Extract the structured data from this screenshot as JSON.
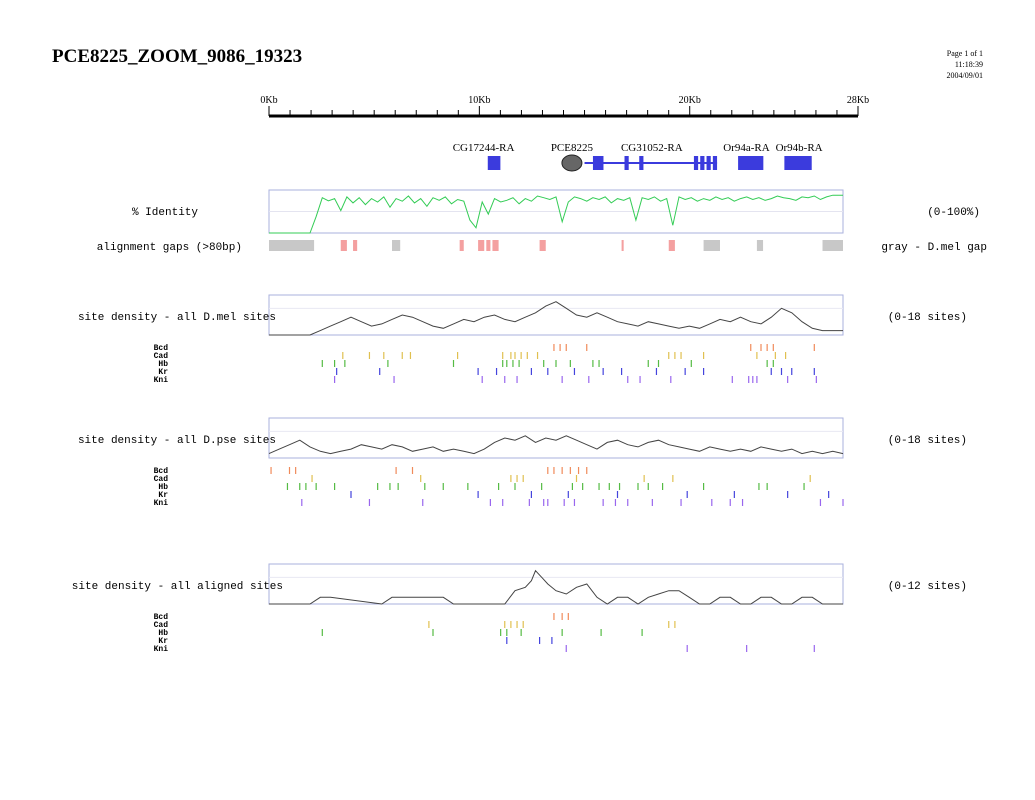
{
  "page": {
    "title": "PCE8225_ZOOM_9086_19323",
    "meta": [
      "Page 1 of 1",
      "11:18:39",
      "2004/09/01"
    ]
  },
  "chart_data": {
    "type": "genome-browser",
    "ruler": {
      "xlim_kb": [
        0,
        28
      ],
      "tick_labels": [
        {
          "kb": 0,
          "label": "0Kb"
        },
        {
          "kb": 10,
          "label": "10Kb"
        },
        {
          "kb": 20,
          "label": "20Kb"
        },
        {
          "kb": 28,
          "label": "28Kb"
        }
      ],
      "minor_step_kb": 1
    },
    "genes": [
      {
        "name": "CG17244-RA",
        "label_kb": 10.2,
        "exons": [
          [
            10.4,
            11.0
          ]
        ],
        "introns": []
      },
      {
        "name": "PCE8225",
        "label_kb": 14.4,
        "element": {
          "center_kb": 14.4,
          "type": "oval"
        }
      },
      {
        "name": "CG31052-RA",
        "label_kb": 18.2,
        "exons": [
          [
            15.4,
            15.9
          ],
          [
            16.9,
            17.1
          ],
          [
            17.6,
            17.8
          ],
          [
            20.2,
            20.4
          ],
          [
            20.5,
            20.7
          ],
          [
            20.8,
            21.0
          ],
          [
            21.1,
            21.3
          ]
        ],
        "introns": [
          [
            15.0,
            21.3
          ]
        ]
      },
      {
        "name": "Or94a-RA",
        "label_kb": 22.7,
        "exons": [
          [
            22.3,
            23.5
          ]
        ],
        "introns": []
      },
      {
        "name": "Or94b-RA",
        "label_kb": 25.2,
        "exons": [
          [
            24.5,
            25.8
          ]
        ],
        "introns": []
      }
    ],
    "identity": {
      "label": "% Identity",
      "range_label": "(0-100%)",
      "x_kb": [
        0,
        1,
        2,
        2.3,
        2.6,
        2.9,
        3.2,
        3.5,
        3.8,
        4.1,
        4.4,
        4.7,
        5,
        5.3,
        5.6,
        5.9,
        6.2,
        6.5,
        6.8,
        7.1,
        7.4,
        7.7,
        8,
        8.3,
        8.6,
        8.9,
        9.2,
        9.5,
        9.8,
        10.1,
        10.4,
        10.7,
        11,
        11.3,
        11.6,
        11.9,
        12.2,
        12.5,
        12.8,
        13.1,
        13.4,
        13.7,
        14,
        14.3,
        14.6,
        14.9,
        15.2,
        15.5,
        15.8,
        16.1,
        16.4,
        16.7,
        17,
        17.3,
        17.6,
        17.9,
        18.2,
        18.5,
        18.8,
        19.1,
        19.4,
        19.7,
        20,
        20.3,
        20.6,
        20.9,
        21.2,
        21.5,
        21.8,
        22.1,
        22.4,
        22.7,
        23,
        23.3,
        23.6,
        23.9,
        24.2,
        24.5,
        24.8,
        25.1,
        25.4,
        25.7,
        26,
        26.3,
        26.6,
        26.9,
        27.2,
        27.5,
        28
      ],
      "y_pct": [
        0,
        0,
        0,
        38,
        82,
        75,
        80,
        52,
        84,
        70,
        82,
        66,
        80,
        72,
        84,
        60,
        80,
        74,
        86,
        70,
        80,
        62,
        82,
        76,
        84,
        68,
        78,
        74,
        30,
        12,
        72,
        44,
        80,
        72,
        76,
        82,
        68,
        80,
        74,
        86,
        82,
        78,
        84,
        26,
        72,
        84,
        80,
        74,
        82,
        78,
        84,
        70,
        80,
        76,
        82,
        30,
        82,
        78,
        84,
        74,
        80,
        18,
        84,
        78,
        82,
        74,
        80,
        76,
        84,
        78,
        82,
        74,
        80,
        84,
        78,
        82,
        76,
        80,
        86,
        82,
        80,
        76,
        84,
        82,
        86,
        78,
        84,
        88,
        88
      ],
      "ylim": [
        0,
        100
      ]
    },
    "gaps": {
      "label": "alignment gaps (>80bp)",
      "right_label": "gray - D.mel gap",
      "gray_kb": [
        [
          0,
          2.2
        ],
        [
          6.0,
          6.4
        ],
        [
          21.2,
          22.0
        ],
        [
          23.8,
          24.1
        ],
        [
          27.0,
          28.0
        ]
      ],
      "red_kb": [
        [
          3.5,
          3.8
        ],
        [
          4.1,
          4.3
        ],
        [
          9.3,
          9.5
        ],
        [
          10.2,
          10.5
        ],
        [
          10.6,
          10.8
        ],
        [
          10.9,
          11.2
        ],
        [
          13.2,
          13.5
        ],
        [
          17.2,
          17.3
        ],
        [
          19.5,
          19.8
        ]
      ]
    },
    "tracks": [
      {
        "label": "site density - all D.mel sites",
        "range_label": "(0-18 sites)",
        "ylim": [
          0,
          18
        ],
        "density_x_kb": [
          0,
          1,
          2,
          2.5,
          3,
          3.5,
          4,
          4.5,
          5,
          5.5,
          6,
          6.5,
          7,
          7.5,
          8,
          8.5,
          9,
          9.5,
          10,
          10.5,
          11,
          11.5,
          12,
          12.5,
          13,
          13.5,
          14,
          14.5,
          15,
          15.5,
          16,
          16.5,
          17,
          17.5,
          18,
          18.5,
          19,
          19.5,
          20,
          20.5,
          21,
          21.5,
          22,
          22.5,
          23,
          23.5,
          24,
          24.5,
          25,
          25.5,
          26,
          26.5,
          27,
          28
        ],
        "density_y": [
          0,
          0,
          0,
          2,
          4,
          6,
          8,
          6,
          4,
          5,
          7,
          9,
          8,
          6,
          4,
          3,
          5,
          7,
          6,
          8,
          9,
          7,
          6,
          8,
          10,
          13,
          15,
          12,
          9,
          8,
          10,
          8,
          6,
          5,
          4,
          6,
          5,
          4,
          3,
          4,
          3,
          5,
          7,
          6,
          8,
          6,
          5,
          8,
          12,
          10,
          6,
          3,
          2,
          2
        ],
        "sites": [
          {
            "name": "Bcd",
            "color": "#f08a5a",
            "kb": [
              13.9,
              14.2,
              14.5,
              15.5,
              23.5,
              24.0,
              24.3,
              24.6,
              26.6
            ]
          },
          {
            "name": "Cad",
            "color": "#e0c050",
            "kb": [
              3.6,
              4.9,
              5.6,
              6.5,
              6.9,
              9.2,
              11.4,
              11.8,
              12.0,
              12.3,
              12.6,
              13.1,
              19.5,
              19.8,
              20.1,
              21.2,
              23.8,
              24.7,
              25.2
            ]
          },
          {
            "name": "Hb",
            "color": "#55bb44",
            "kb": [
              2.6,
              3.2,
              3.7,
              5.8,
              9.0,
              11.4,
              11.6,
              11.9,
              12.2,
              13.4,
              14.0,
              14.7,
              15.8,
              16.1,
              18.5,
              19.0,
              20.6,
              24.3,
              24.6
            ]
          },
          {
            "name": "Kr",
            "color": "#4444dd",
            "kb": [
              3.3,
              5.4,
              10.2,
              11.1,
              12.8,
              13.6,
              14.9,
              16.3,
              17.2,
              18.9,
              20.3,
              21.2,
              24.5,
              25.0,
              25.5,
              26.6
            ]
          },
          {
            "name": "Kni",
            "color": "#9966ee",
            "kb": [
              3.2,
              6.1,
              10.4,
              11.5,
              12.1,
              14.3,
              15.6,
              17.5,
              18.1,
              19.6,
              22.6,
              23.4,
              23.6,
              23.8,
              25.3,
              26.7
            ]
          }
        ]
      },
      {
        "label": "site density - all D.pse sites",
        "range_label": "(0-18 sites)",
        "ylim": [
          0,
          18
        ],
        "density_x_kb": [
          0,
          0.5,
          1,
          1.5,
          2,
          2.5,
          3,
          3.5,
          4,
          4.5,
          5,
          5.5,
          6,
          6.5,
          7,
          7.5,
          8,
          8.5,
          9,
          9.5,
          10,
          10.5,
          11,
          11.5,
          12,
          12.5,
          13,
          13.5,
          14,
          14.5,
          15,
          15.5,
          16,
          16.5,
          17,
          17.5,
          18,
          18.5,
          19,
          19.5,
          20,
          20.5,
          21,
          21.5,
          22,
          22.5,
          23,
          23.5,
          24,
          24.5,
          25,
          25.5,
          26,
          26.5,
          27,
          27.5,
          28
        ],
        "density_y": [
          2,
          4,
          6,
          8,
          5,
          3,
          2,
          3,
          4,
          6,
          5,
          4,
          6,
          5,
          3,
          4,
          5,
          3,
          4,
          3,
          2,
          4,
          7,
          9,
          8,
          10,
          7,
          9,
          8,
          10,
          8,
          6,
          4,
          7,
          8,
          6,
          5,
          7,
          8,
          6,
          5,
          4,
          3,
          5,
          4,
          3,
          4,
          3,
          5,
          4,
          3,
          4,
          2,
          3,
          2,
          3,
          2
        ],
        "sites": [
          {
            "name": "Bcd",
            "color": "#f08a5a",
            "kb": [
              0.1,
              1.0,
              1.3,
              6.2,
              7.0,
              13.6,
              13.9,
              14.3,
              14.7,
              15.1,
              15.5
            ]
          },
          {
            "name": "Cad",
            "color": "#e0c050",
            "kb": [
              2.1,
              7.4,
              11.8,
              12.1,
              12.4,
              15.0,
              18.3,
              19.7,
              26.4
            ]
          },
          {
            "name": "Hb",
            "color": "#55bb44",
            "kb": [
              0.9,
              1.5,
              1.8,
              2.3,
              3.2,
              5.3,
              5.9,
              6.3,
              7.6,
              8.5,
              9.7,
              11.2,
              12.0,
              13.3,
              14.8,
              15.3,
              16.1,
              16.6,
              17.1,
              18.0,
              18.5,
              19.2,
              21.2,
              23.9,
              24.3,
              26.1
            ]
          },
          {
            "name": "Kr",
            "color": "#4444dd",
            "kb": [
              4.0,
              10.2,
              12.8,
              14.6,
              17.0,
              20.4,
              22.7,
              25.3,
              27.3
            ]
          },
          {
            "name": "Kni",
            "color": "#9966ee",
            "kb": [
              1.6,
              4.9,
              7.5,
              10.8,
              11.4,
              12.7,
              13.4,
              13.6,
              14.4,
              14.9,
              16.3,
              16.9,
              17.5,
              18.7,
              20.1,
              21.6,
              22.5,
              23.1,
              26.9,
              28.0
            ]
          }
        ]
      },
      {
        "label": "site density - all aligned sites",
        "range_label": "(0-12 sites)",
        "ylim": [
          0,
          12
        ],
        "density_x_kb": [
          0,
          2,
          2.5,
          3,
          5.5,
          6,
          8.5,
          9,
          10,
          11.5,
          12,
          12.5,
          12.8,
          13,
          13.3,
          13.6,
          14,
          14.5,
          15,
          15.5,
          16,
          16.5,
          17,
          17.5,
          18,
          18.5,
          19,
          19.5,
          20,
          20.5,
          21,
          21.5,
          22,
          22.5,
          23,
          23.5,
          24,
          24.5,
          25,
          25.5,
          26,
          26.5,
          27,
          28
        ],
        "density_y": [
          0,
          0,
          2,
          2,
          0,
          2,
          2,
          0,
          0,
          0,
          4,
          5,
          7,
          10,
          8,
          6,
          4,
          3,
          5,
          6,
          2,
          0,
          2,
          2,
          0,
          2,
          3,
          4,
          4,
          2,
          0,
          0,
          2,
          2,
          0,
          0,
          2,
          2,
          0,
          0,
          2,
          2,
          0,
          0
        ],
        "sites": [
          {
            "name": "Bcd",
            "color": "#f08a5a",
            "kb": [
              13.9,
              14.3,
              14.6
            ]
          },
          {
            "name": "Cad",
            "color": "#e0c050",
            "kb": [
              7.8,
              11.5,
              11.8,
              12.1,
              12.4,
              19.5,
              19.8
            ]
          },
          {
            "name": "Hb",
            "color": "#55bb44",
            "kb": [
              2.6,
              8.0,
              11.3,
              11.6,
              12.3,
              14.3,
              16.2,
              18.2
            ]
          },
          {
            "name": "Kr",
            "color": "#4444dd",
            "kb": [
              11.6,
              13.2,
              13.8
            ]
          },
          {
            "name": "Kni",
            "color": "#9966ee",
            "kb": [
              14.5,
              20.4,
              23.3,
              26.6
            ]
          }
        ]
      }
    ]
  }
}
